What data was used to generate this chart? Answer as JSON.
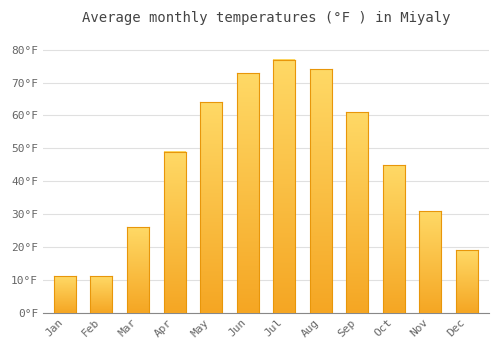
{
  "title": "Average monthly temperatures (°F ) in Miyaly",
  "months": [
    "Jan",
    "Feb",
    "Mar",
    "Apr",
    "May",
    "Jun",
    "Jul",
    "Aug",
    "Sep",
    "Oct",
    "Nov",
    "Dec"
  ],
  "values": [
    11,
    11,
    26,
    49,
    64,
    73,
    77,
    74,
    61,
    45,
    31,
    19
  ],
  "bar_color_bottom": "#F5A623",
  "bar_color_top": "#FFD966",
  "bar_edge_color": "#E8960A",
  "background_color": "#FFFFFF",
  "grid_color": "#E0E0E0",
  "yticks": [
    0,
    10,
    20,
    30,
    40,
    50,
    60,
    70,
    80
  ],
  "ylim": [
    0,
    85
  ],
  "title_fontsize": 10,
  "tick_fontsize": 8,
  "tick_color": "#666666",
  "title_color": "#444444"
}
